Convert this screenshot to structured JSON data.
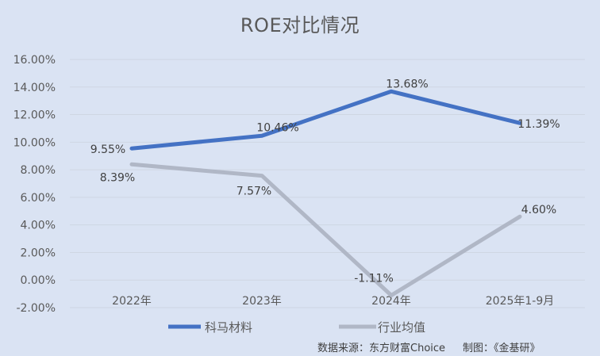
{
  "chart_data": {
    "type": "line",
    "title": "ROE对比情况",
    "xlabel": "",
    "ylabel": "",
    "categories": [
      "2022年",
      "2023年",
      "2024年",
      "2025年1-9月"
    ],
    "series": [
      {
        "name": "科马材料",
        "color": "#4472c4",
        "values": [
          9.55,
          10.46,
          13.68,
          11.39
        ],
        "labels": [
          "9.55%",
          "10.46%",
          "13.68%",
          "11.39%"
        ]
      },
      {
        "name": "行业均值",
        "color": "#b0b7c6",
        "values": [
          8.39,
          7.57,
          -1.11,
          4.6
        ],
        "labels": [
          "8.39%",
          "7.57%",
          "-1.11%",
          "4.60%"
        ]
      }
    ],
    "ylim": [
      -2,
      16
    ],
    "yticks": [
      "16.00%",
      "14.00%",
      "12.00%",
      "10.00%",
      "8.00%",
      "6.00%",
      "4.00%",
      "2.00%",
      "0.00%",
      "-2.00%"
    ],
    "grid": true,
    "legend_position": "bottom"
  },
  "footer": {
    "source": "数据来源：东方财富Choice",
    "credit": "制图：《金基研》"
  }
}
